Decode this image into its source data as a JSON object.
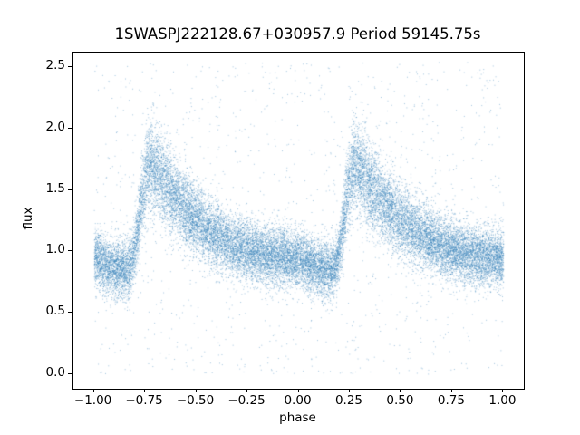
{
  "chart_data": {
    "type": "scatter",
    "title": "1SWASPJ222128.67+030957.9 Period 59145.75s",
    "xlabel": "phase",
    "ylabel": "flux",
    "xlim": [
      -1.1,
      1.1
    ],
    "ylim": [
      -0.12,
      2.62
    ],
    "xticks": [
      -1.0,
      -0.75,
      -0.5,
      -0.25,
      0.0,
      0.25,
      0.5,
      0.75,
      1.0
    ],
    "xtick_labels": [
      "−1.00",
      "−0.75",
      "−0.50",
      "−0.25",
      "0.00",
      "0.25",
      "0.50",
      "0.75",
      "1.00"
    ],
    "yticks": [
      0.0,
      0.5,
      1.0,
      1.5,
      2.0,
      2.5
    ],
    "ytick_labels": [
      "0.0",
      "0.5",
      "1.0",
      "1.5",
      "2.0",
      "2.5"
    ],
    "marker_color": "#2f7cb5",
    "marker_alpha": 0.45,
    "n_points": 26000,
    "mean_curve": {
      "comment": "folded light curve, phase 0-1; sharp rise ~0.19-0.27, peak flux ~1.72 at phase 0.27 (and -0.73), slow decline to ~0.85 minimum just before rise",
      "phase": [
        0.0,
        0.05,
        0.1,
        0.14,
        0.17,
        0.19,
        0.21,
        0.23,
        0.25,
        0.27,
        0.3,
        0.35,
        0.4,
        0.45,
        0.5,
        0.55,
        0.6,
        0.65,
        0.7,
        0.75,
        0.8,
        0.85,
        0.9,
        0.95,
        1.0
      ],
      "flux": [
        0.94,
        0.9,
        0.87,
        0.85,
        0.86,
        0.95,
        1.15,
        1.4,
        1.6,
        1.72,
        1.66,
        1.54,
        1.43,
        1.34,
        1.26,
        1.19,
        1.13,
        1.08,
        1.04,
        1.01,
        0.99,
        0.97,
        0.96,
        0.95,
        0.94
      ],
      "noise_sigma_base": 0.115,
      "noise_sigma_peak_scale": 0.09,
      "outlier_fraction": 0.045,
      "outlier_flux_range": [
        0.0,
        2.55
      ]
    }
  }
}
